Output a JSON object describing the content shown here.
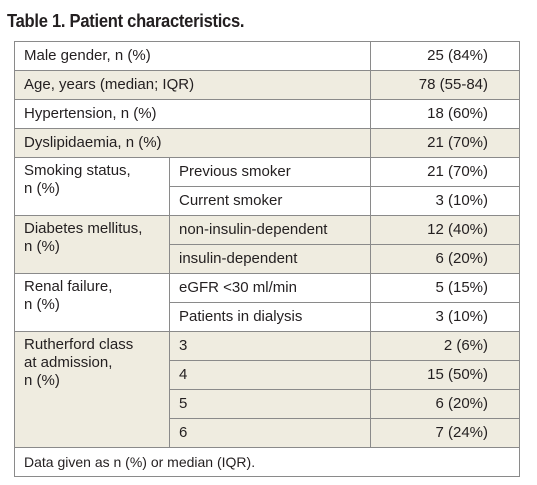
{
  "title": "Table 1. Patient characteristics.",
  "rows": [
    {
      "label": "Male gender, n (%)",
      "value": "25 (84%)"
    },
    {
      "label": "Age, years (median; IQR)",
      "value": "78 (55-84)"
    },
    {
      "label": "Hypertension, n (%)",
      "value": "18 (60%)"
    },
    {
      "label": "Dyslipidaemia, n (%)",
      "value": "21 (70%)"
    }
  ],
  "groups": [
    {
      "label_lines": [
        "Smoking status,",
        "n (%)"
      ],
      "subrows": [
        {
          "label": "Previous smoker",
          "value": "21 (70%)"
        },
        {
          "label": "Current smoker",
          "value": "3 (10%)"
        }
      ]
    },
    {
      "label_lines": [
        "Diabetes mellitus,",
        "n (%)"
      ],
      "subrows": [
        {
          "label": "non-insulin-dependent",
          "value": "12 (40%)"
        },
        {
          "label": "insulin-dependent",
          "value": "6 (20%)"
        }
      ]
    },
    {
      "label_lines": [
        "Renal failure,",
        "n (%)"
      ],
      "subrows": [
        {
          "label": "eGFR <30 ml/min",
          "value": "5 (15%)"
        },
        {
          "label": "Patients in dialysis",
          "value": "3 (10%)"
        }
      ]
    },
    {
      "label_lines": [
        "Rutherford class",
        "at admission,",
        "n (%)"
      ],
      "subrows": [
        {
          "label": "3",
          "value": "2 (6%)"
        },
        {
          "label": "4",
          "value": "15 (50%)"
        },
        {
          "label": "5",
          "value": "6 (20%)"
        },
        {
          "label": "6",
          "value": "7 (24%)"
        }
      ]
    }
  ],
  "footnote": "Data given as n (%) or median (IQR).",
  "colors": {
    "shade": "#efece0",
    "border": "#8a8a8a",
    "text": "#231f20"
  }
}
